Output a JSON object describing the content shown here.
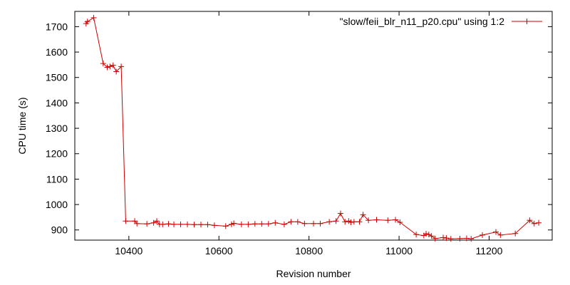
{
  "chart_data": {
    "type": "line",
    "title": "",
    "xlabel": "Revision number",
    "ylabel": "CPU time (s)",
    "xlim": [
      10280,
      11340
    ],
    "ylim": [
      860,
      1760
    ],
    "xticks": [
      10400,
      10600,
      10800,
      11000,
      11200
    ],
    "yticks": [
      900,
      1000,
      1100,
      1200,
      1300,
      1400,
      1500,
      1600,
      1700
    ],
    "grid": false,
    "legend_position": "top-right",
    "series": [
      {
        "name": "\"slow/feii_blr_n11_p20.cpu\" using 1:2",
        "color": "#cc0000",
        "marker": "plus",
        "points": [
          [
            10305,
            1712
          ],
          [
            10308,
            1720
          ],
          [
            10322,
            1735
          ],
          [
            10343,
            1555
          ],
          [
            10352,
            1540
          ],
          [
            10358,
            1543
          ],
          [
            10365,
            1548
          ],
          [
            10372,
            1523
          ],
          [
            10383,
            1543
          ],
          [
            10393,
            935
          ],
          [
            10413,
            935
          ],
          [
            10418,
            925
          ],
          [
            10440,
            924
          ],
          [
            10455,
            928
          ],
          [
            10462,
            935
          ],
          [
            10468,
            922
          ],
          [
            10475,
            922
          ],
          [
            10488,
            924
          ],
          [
            10500,
            922
          ],
          [
            10515,
            922
          ],
          [
            10530,
            922
          ],
          [
            10545,
            921
          ],
          [
            10560,
            921
          ],
          [
            10575,
            921
          ],
          [
            10590,
            918
          ],
          [
            10615,
            915
          ],
          [
            10628,
            922
          ],
          [
            10633,
            926
          ],
          [
            10650,
            922
          ],
          [
            10665,
            922
          ],
          [
            10680,
            924
          ],
          [
            10695,
            924
          ],
          [
            10710,
            924
          ],
          [
            10725,
            928
          ],
          [
            10745,
            922
          ],
          [
            10760,
            932
          ],
          [
            10775,
            932
          ],
          [
            10790,
            925
          ],
          [
            10810,
            925
          ],
          [
            10825,
            925
          ],
          [
            10845,
            932
          ],
          [
            10860,
            935
          ],
          [
            10870,
            965
          ],
          [
            10880,
            932
          ],
          [
            10888,
            935
          ],
          [
            10893,
            930
          ],
          [
            10900,
            932
          ],
          [
            10912,
            932
          ],
          [
            10920,
            960
          ],
          [
            10932,
            938
          ],
          [
            10950,
            940
          ],
          [
            10975,
            938
          ],
          [
            10992,
            940
          ],
          [
            11002,
            930
          ],
          [
            11038,
            882
          ],
          [
            11055,
            878
          ],
          [
            11060,
            885
          ],
          [
            11066,
            882
          ],
          [
            11072,
            876
          ],
          [
            11080,
            866
          ],
          [
            11098,
            870
          ],
          [
            11105,
            868
          ],
          [
            11115,
            865
          ],
          [
            11135,
            866
          ],
          [
            11150,
            867
          ],
          [
            11160,
            865
          ],
          [
            11185,
            880
          ],
          [
            11215,
            892
          ],
          [
            11225,
            880
          ],
          [
            11258,
            886
          ],
          [
            11290,
            938
          ],
          [
            11300,
            925
          ],
          [
            11310,
            928
          ]
        ]
      }
    ]
  }
}
